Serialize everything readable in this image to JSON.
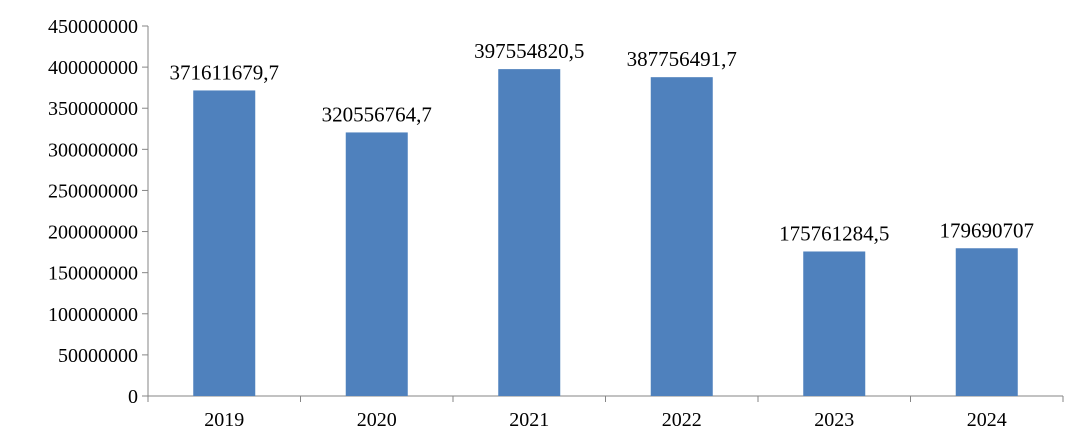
{
  "chart_data": {
    "type": "bar",
    "title": "",
    "xlabel": "",
    "ylabel": "",
    "categories": [
      "2019",
      "2020",
      "2021",
      "2022",
      "2023",
      "2024"
    ],
    "values": [
      371611679.7,
      320556764.7,
      397554820.5,
      387756491.7,
      175761284.5,
      179690707
    ],
    "value_labels": [
      "371611679,7",
      "320556764,7",
      "397554820,5",
      "387756491,7",
      "175761284,5",
      "179690707"
    ],
    "ylim": [
      0,
      450000000
    ],
    "yticks": [
      0,
      50000000,
      100000000,
      150000000,
      200000000,
      250000000,
      300000000,
      350000000,
      400000000,
      450000000
    ],
    "ytick_labels": [
      "0",
      "50000000",
      "100000000",
      "150000000",
      "200000000",
      "250000000",
      "300000000",
      "350000000",
      "400000000",
      "450000000"
    ],
    "grid": false,
    "legend": "none",
    "bar_color": "#4f81bd",
    "axis_color": "#868686"
  }
}
